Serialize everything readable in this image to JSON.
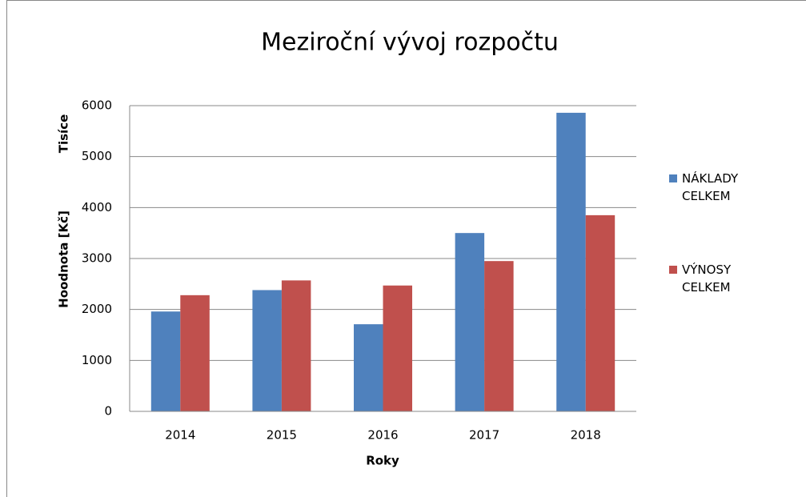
{
  "chart_data": {
    "type": "bar",
    "title": "Meziroční vývoj rozpočtu",
    "x_label": "Roky",
    "y_label": "Hoodnota [Kč]",
    "y_unit": "Tisíce",
    "categories": [
      "2014",
      "2015",
      "2016",
      "2017",
      "2018"
    ],
    "series": [
      {
        "name": "NÁKLADY CELKEM",
        "color": "#4f81bd",
        "values": [
          1960,
          2380,
          1710,
          3500,
          5860
        ]
      },
      {
        "name": "VÝNOSY CELKEM",
        "color": "#c0504d",
        "values": [
          2280,
          2570,
          2470,
          2950,
          3850
        ]
      }
    ],
    "ylim": [
      0,
      6000
    ],
    "yticks": [
      0,
      1000,
      2000,
      3000,
      4000,
      5000,
      6000
    ],
    "grid": true,
    "legend": "right"
  }
}
